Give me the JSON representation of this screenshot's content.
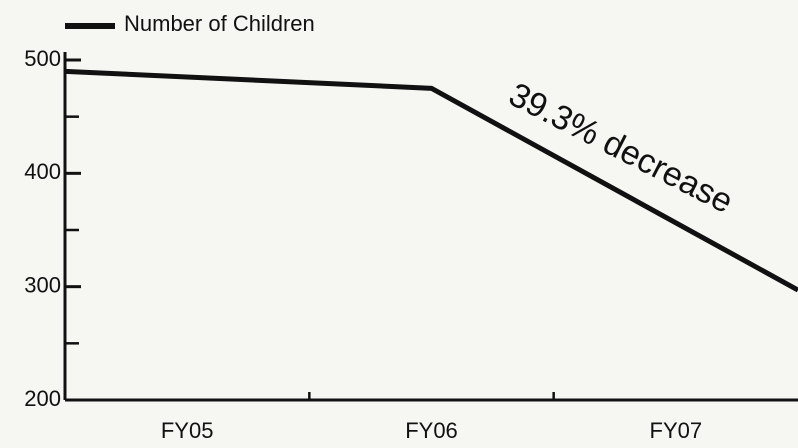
{
  "chart_data": {
    "type": "line",
    "legend": "Number of Children",
    "annotation": "39.3% decrease",
    "series": [
      {
        "name": "Number of Children",
        "color": "#111111",
        "x": [
          0,
          1.5,
          3
        ],
        "values": [
          490,
          475,
          297
        ]
      }
    ],
    "xlim": [
      0,
      3
    ],
    "xticks": [
      {
        "value": 0.5,
        "label": "FY05"
      },
      {
        "value": 1.5,
        "label": "FY06"
      },
      {
        "value": 2.5,
        "label": "FY07"
      }
    ],
    "xminorticks": [
      1,
      2
    ],
    "ylim": [
      200,
      500
    ],
    "yticks": [
      200,
      300,
      400,
      500
    ],
    "yminorticks": [
      250,
      350,
      450
    ],
    "legend_position": "top-left"
  }
}
